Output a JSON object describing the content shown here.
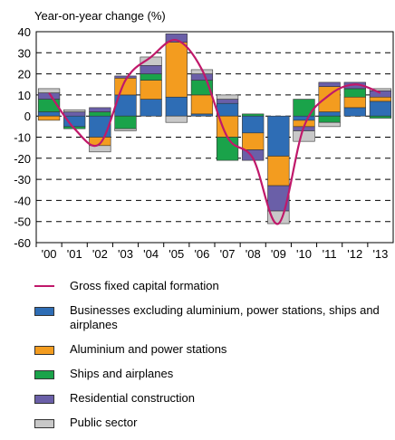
{
  "chart_data": {
    "type": "bar",
    "y_label": "Year-on-year change (%)",
    "categories": [
      "'00",
      "'01",
      "'02",
      "'03",
      "'04",
      "'05",
      "'06",
      "'07",
      "'08",
      "'09",
      "'10",
      "'11",
      "'12",
      "'13"
    ],
    "series": [
      {
        "name": "Businesses excluding aluminium, power stations, ships and airplanes",
        "color": "#2e6db5",
        "values": [
          2,
          -5,
          -10,
          10,
          8,
          9,
          1,
          6,
          -8,
          -19,
          -2,
          2,
          4,
          7
        ]
      },
      {
        "name": "Aluminium and power stations",
        "color": "#f39c1f",
        "values": [
          -2,
          0,
          -4,
          8,
          9,
          26,
          9,
          -10,
          -8,
          -14,
          -3,
          12,
          5,
          2
        ]
      },
      {
        "name": "Ships and airplanes",
        "color": "#1aa34a",
        "values": [
          6,
          -1,
          2,
          -6,
          3,
          0,
          7,
          -11,
          1,
          0,
          8,
          -3,
          4,
          -1
        ]
      },
      {
        "name": "Residential construction",
        "color": "#6a5fa8",
        "values": [
          3,
          2,
          2,
          1,
          4,
          4,
          3,
          2,
          -5,
          -12,
          -2,
          2,
          3,
          3
        ]
      },
      {
        "name": "Public sector",
        "color": "#c8c8c8",
        "values": [
          2,
          1,
          -3,
          -1,
          4,
          -3,
          2,
          2,
          0,
          -6,
          -5,
          -2,
          0,
          1
        ]
      }
    ],
    "line": {
      "name": "Gross fixed capital formation",
      "color": "#c0186a",
      "values": [
        11,
        -6,
        -13,
        17,
        28,
        36,
        22,
        -10,
        -20,
        -51,
        -5,
        10,
        15,
        11
      ]
    },
    "ylim": [
      -60,
      40
    ],
    "yticks": [
      40,
      30,
      20,
      10,
      0,
      -10,
      -20,
      -30,
      -40,
      -50,
      -60
    ],
    "grid": true
  }
}
